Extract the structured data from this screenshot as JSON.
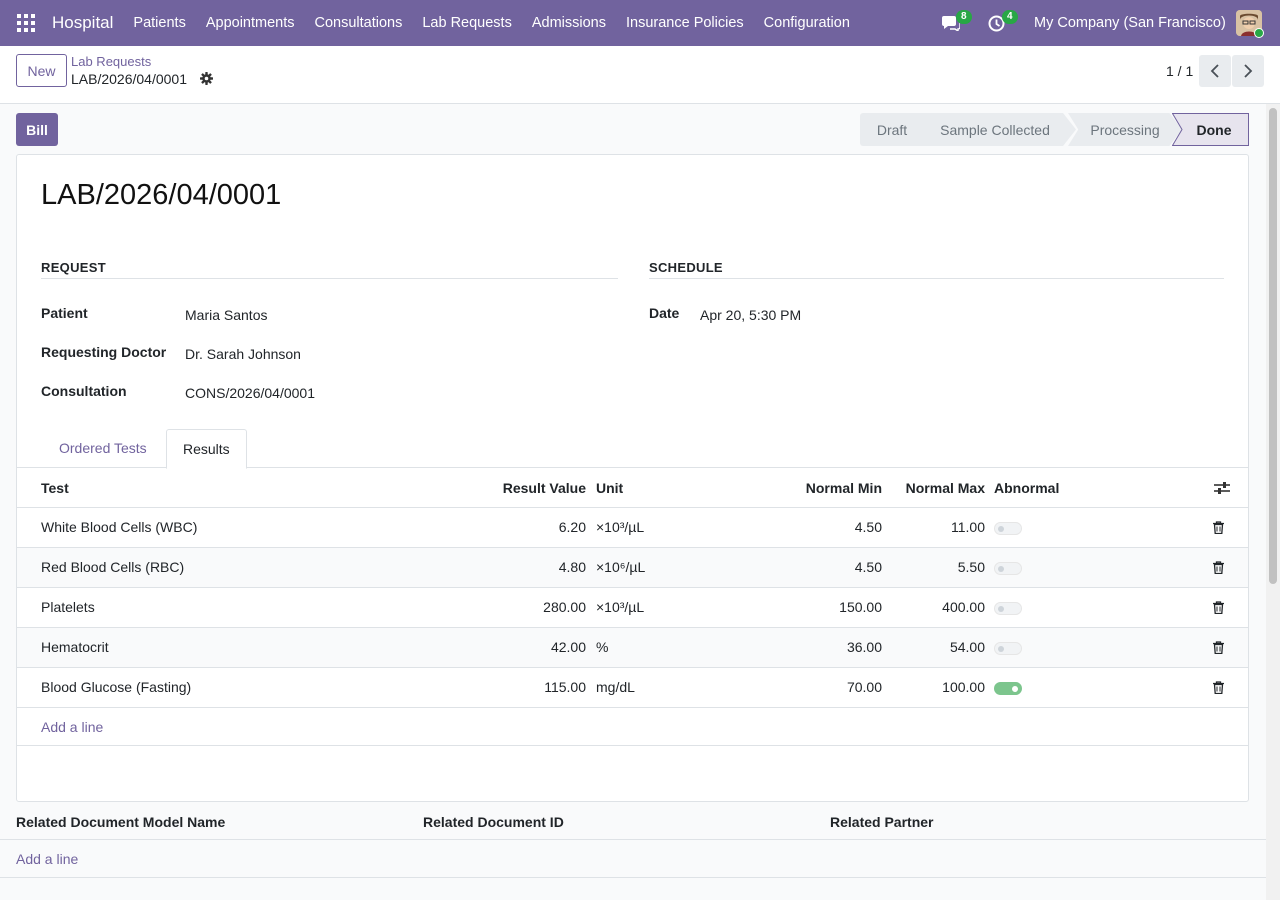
{
  "app": {
    "name": "Hospital"
  },
  "menu": [
    "Patients",
    "Appointments",
    "Consultations",
    "Lab Requests",
    "Admissions",
    "Insurance Policies",
    "Configuration"
  ],
  "systray": {
    "messages_count": "8",
    "activities_count": "4",
    "company": "My Company (San Francisco)"
  },
  "control": {
    "new_label": "New",
    "breadcrumb_parent": "Lab Requests",
    "breadcrumb_current": "LAB/2026/04/0001",
    "pager": "1 / 1"
  },
  "statusbar": {
    "bill_label": "Bill",
    "stages": [
      "Draft",
      "Sample Collected",
      "Processing",
      "Done"
    ],
    "active": "Done"
  },
  "record": {
    "title": "LAB/2026/04/0001",
    "request_section": "REQUEST",
    "schedule_section": "SCHEDULE",
    "fields": {
      "patient_label": "Patient",
      "patient": "Maria Santos",
      "doctor_label": "Requesting Doctor",
      "doctor": "Dr. Sarah Johnson",
      "consultation_label": "Consultation",
      "consultation": "CONS/2026/04/0001",
      "date_label": "Date",
      "date": "Apr 20, 5:30 PM"
    }
  },
  "tabs": [
    "Ordered Tests",
    "Results"
  ],
  "active_tab": "Results",
  "results": {
    "columns": [
      "Test",
      "Result Value",
      "Unit",
      "Normal Min",
      "Normal Max",
      "Abnormal"
    ],
    "rows": [
      {
        "test": "White Blood Cells (WBC)",
        "value": "6.20",
        "unit": "×10³/µL",
        "min": "4.50",
        "max": "11.00",
        "abnormal": false
      },
      {
        "test": "Red Blood Cells (RBC)",
        "value": "4.80",
        "unit": "×10⁶/µL",
        "min": "4.50",
        "max": "5.50",
        "abnormal": false
      },
      {
        "test": "Platelets",
        "value": "280.00",
        "unit": "×10³/µL",
        "min": "150.00",
        "max": "400.00",
        "abnormal": false
      },
      {
        "test": "Hematocrit",
        "value": "42.00",
        "unit": "%",
        "min": "36.00",
        "max": "54.00",
        "abnormal": false
      },
      {
        "test": "Blood Glucose (Fasting)",
        "value": "115.00",
        "unit": "mg/dL",
        "min": "70.00",
        "max": "100.00",
        "abnormal": true
      }
    ],
    "add_line": "Add a line"
  },
  "related": {
    "columns": [
      "Related Document Model Name",
      "Related Document ID",
      "Related Partner"
    ],
    "add_line": "Add a line"
  },
  "colors": {
    "brand": "#71639e",
    "toggle_on": "#7cc58d",
    "badge": "#28a745"
  }
}
